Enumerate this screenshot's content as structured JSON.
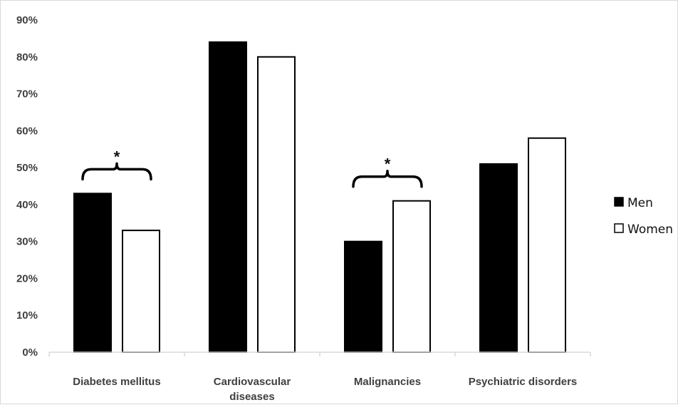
{
  "chart_data": {
    "type": "bar",
    "title": "",
    "xlabel": "",
    "ylabel": "",
    "ylim": [
      0,
      0.9
    ],
    "yticks": [
      "0%",
      "10%",
      "20%",
      "30%",
      "40%",
      "50%",
      "60%",
      "70%",
      "80%",
      "90%"
    ],
    "categories": [
      [
        "Diabetes mellitus"
      ],
      [
        "Cardiovascular",
        "diseases"
      ],
      [
        "Malignancies"
      ],
      [
        "Psychiatric disorders"
      ]
    ],
    "series": [
      {
        "name": "Men",
        "values": [
          0.43,
          0.84,
          0.3,
          0.51
        ],
        "fill": "#000000",
        "stroke": "#000000"
      },
      {
        "name": "Women",
        "values": [
          0.33,
          0.8,
          0.41,
          0.58
        ],
        "fill": "#ffffff",
        "stroke": "#000000"
      }
    ],
    "significance": [
      {
        "category_index": 0,
        "label": "*"
      },
      {
        "category_index": 2,
        "label": "*"
      }
    ],
    "grid": false,
    "legend_position": "right"
  }
}
